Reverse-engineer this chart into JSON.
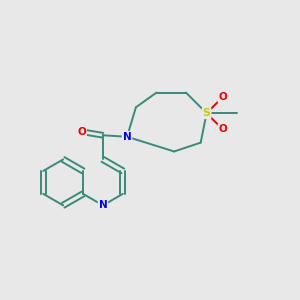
{
  "background_color": "#e8e8e8",
  "bond_color": "#3a8a7a",
  "atom_colors": {
    "N": "#0000ee",
    "O": "#ee0000",
    "S": "#cccc00",
    "C": "#3a8a7a"
  },
  "figsize": [
    3.0,
    3.0
  ],
  "dpi": 100,
  "lw": 1.4
}
